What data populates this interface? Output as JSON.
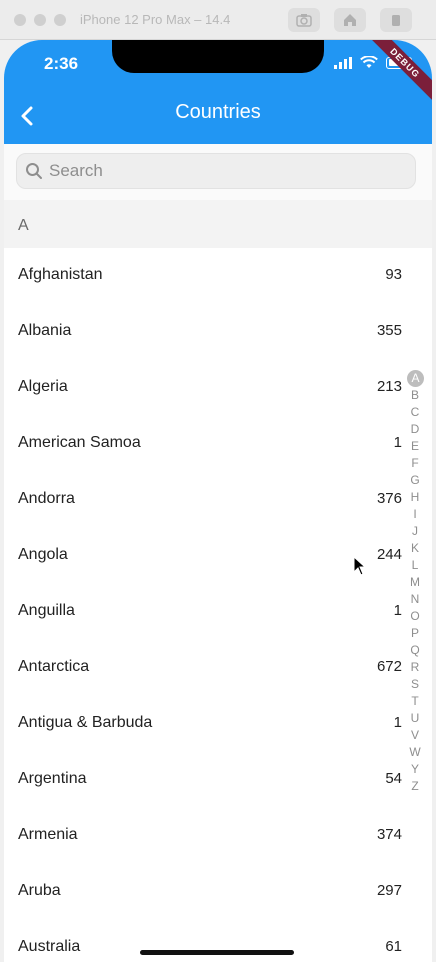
{
  "simulator": {
    "title": "iPhone 12 Pro Max – 14.4"
  },
  "status_bar": {
    "time": "2:36"
  },
  "debug_banner": "DEBUG",
  "app_bar": {
    "title": "Countries"
  },
  "search": {
    "placeholder": "Search"
  },
  "section": {
    "letter": "A"
  },
  "countries": [
    {
      "name": "Afghanistan",
      "code": "93"
    },
    {
      "name": "Albania",
      "code": "355"
    },
    {
      "name": "Algeria",
      "code": "213"
    },
    {
      "name": "American Samoa",
      "code": "1"
    },
    {
      "name": "Andorra",
      "code": "376"
    },
    {
      "name": "Angola",
      "code": "244"
    },
    {
      "name": "Anguilla",
      "code": "1"
    },
    {
      "name": "Antarctica",
      "code": "672"
    },
    {
      "name": "Antigua & Barbuda",
      "code": "1"
    },
    {
      "name": "Argentina",
      "code": "54"
    },
    {
      "name": "Armenia",
      "code": "374"
    },
    {
      "name": "Aruba",
      "code": "297"
    },
    {
      "name": "Australia",
      "code": "61"
    }
  ],
  "index_letters": [
    "A",
    "B",
    "C",
    "D",
    "E",
    "F",
    "G",
    "H",
    "I",
    "J",
    "K",
    "L",
    "M",
    "N",
    "O",
    "P",
    "Q",
    "R",
    "S",
    "T",
    "U",
    "V",
    "W",
    "Y",
    "Z"
  ],
  "index_active": "A",
  "colors": {
    "accent": "#2196f3",
    "debug": "#7b1f3a"
  }
}
